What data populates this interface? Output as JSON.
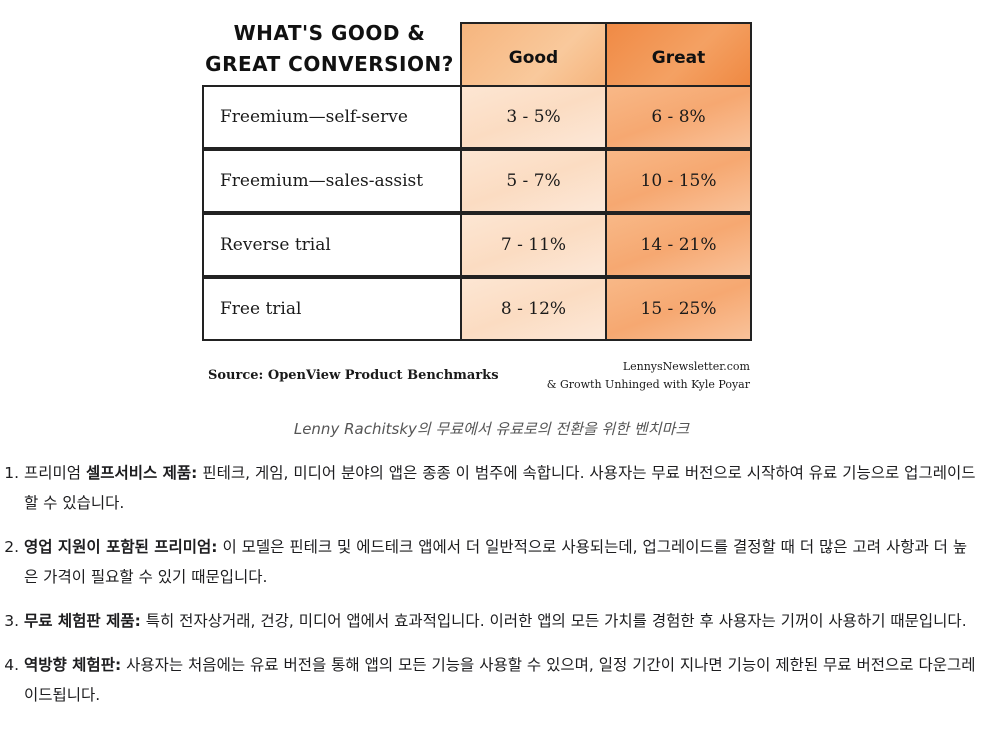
{
  "figure": {
    "title_line1": "WHAT'S GOOD &",
    "title_line2": "GREAT CONVERSION?",
    "columns": [
      "Good",
      "Great"
    ],
    "rows": [
      {
        "label": "Freemium—self-serve",
        "good": "3 - 5%",
        "great": "6 - 8%"
      },
      {
        "label": "Freemium—sales-assist",
        "good": "5 - 7%",
        "great": "10 - 15%"
      },
      {
        "label": "Reverse trial",
        "good": "7 - 11%",
        "great": "14 - 21%"
      },
      {
        "label": "Free trial",
        "good": "8 - 12%",
        "great": "15 - 25%"
      }
    ],
    "source": "Source: OpenView Product Benchmarks",
    "credit_line1": "LennysNewsletter.com",
    "credit_line2": "& Growth Unhinged with Kyle Poyar",
    "colors": {
      "good": "#fbdcc2",
      "great": "#f6a871"
    }
  },
  "caption": "Lenny Rachitsky의 무료에서 유료로의 전환을 위한 벤치마크",
  "list": [
    {
      "prefix": "프리미엄 ",
      "bold": "셀프서비스 제품:",
      "text": " 핀테크, 게임, 미디어 분야의 앱은 종종 이 범주에 속합니다. 사용자는 무료 버전으로 시작하여 유료 기능으로 업그레이드할 수 있습니다."
    },
    {
      "prefix": "",
      "bold": "영업 지원이 포함된 프리미엄:",
      "text": " 이 모델은 핀테크 및 에드테크 앱에서 더 일반적으로 사용되는데, 업그레이드를 결정할 때 더 많은 고려 사항과 더 높은 가격이 필요할 수 있기 때문입니다."
    },
    {
      "prefix": "",
      "bold": "무료 체험판 제품:",
      "text": " 특히 전자상거래, 건강, 미디어 앱에서 효과적입니다. 이러한 앱의 모든 가치를 경험한 후 사용자는 기꺼이 사용하기 때문입니다."
    },
    {
      "prefix": "",
      "bold": "역방향 체험판:",
      "text": " 사용자는 처음에는 유료 버전을 통해 앱의 모든 기능을 사용할 수 있으며, 일정 기간이 지나면 기능이 제한된 무료 버전으로 다운그레이드됩니다."
    }
  ]
}
